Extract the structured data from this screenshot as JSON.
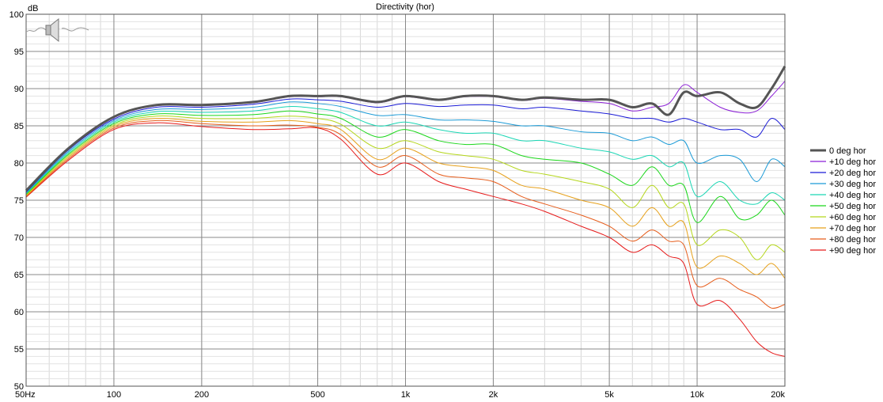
{
  "chart_data": {
    "type": "line",
    "title": "Directivity (hor)",
    "ylabel": "dB",
    "xscale": "log",
    "xlim": [
      50,
      20000
    ],
    "ylim": [
      50,
      100
    ],
    "x_ticks": [
      {
        "value": 50,
        "label": "50Hz"
      },
      {
        "value": 100,
        "label": "100"
      },
      {
        "value": 200,
        "label": "200"
      },
      {
        "value": 500,
        "label": "500"
      },
      {
        "value": 1000,
        "label": "1k"
      },
      {
        "value": 2000,
        "label": "2k"
      },
      {
        "value": 5000,
        "label": "5k"
      },
      {
        "value": 10000,
        "label": "10k"
      },
      {
        "value": 20000,
        "label": "20k"
      }
    ],
    "y_ticks": [
      {
        "value": 100,
        "label": "100"
      },
      {
        "value": 95,
        "label": "95"
      },
      {
        "value": 90,
        "label": "90"
      },
      {
        "value": 85,
        "label": "85"
      },
      {
        "value": 80,
        "label": "80"
      },
      {
        "value": 75,
        "label": "75"
      },
      {
        "value": 70,
        "label": "70"
      },
      {
        "value": 65,
        "label": "65"
      },
      {
        "value": 60,
        "label": "60"
      },
      {
        "value": 55,
        "label": "55"
      },
      {
        "value": 50,
        "label": "50"
      }
    ],
    "grid": true,
    "legend_position": "right",
    "x": [
      50,
      70,
      100,
      140,
      200,
      300,
      400,
      500,
      600,
      800,
      1000,
      1300,
      1600,
      2000,
      2500,
      3000,
      4000,
      5000,
      6000,
      7000,
      8000,
      9000,
      10000,
      12000,
      14000,
      16000,
      18000,
      20000
    ],
    "series": [
      {
        "name": "0 deg hor",
        "color": "#555555",
        "width": 3,
        "values": [
          76.3,
          82.0,
          86.2,
          87.8,
          87.8,
          88.2,
          89.0,
          89.0,
          89.0,
          88.2,
          89.0,
          88.5,
          89.0,
          89.0,
          88.5,
          88.8,
          88.5,
          88.5,
          87.5,
          88.0,
          86.5,
          89.5,
          89.0,
          89.5,
          88.0,
          87.5,
          90.0,
          93.0
        ]
      },
      {
        "name": "+10 deg hor",
        "color": "#8b1fd6",
        "width": 1,
        "values": [
          76.2,
          81.9,
          86.1,
          87.7,
          87.7,
          88.1,
          88.9,
          88.9,
          88.9,
          88.1,
          88.9,
          88.4,
          88.9,
          88.9,
          88.4,
          88.7,
          88.3,
          88.0,
          87.0,
          87.5,
          88.0,
          90.5,
          89.5,
          87.5,
          86.8,
          87.0,
          89.0,
          91.0
        ]
      },
      {
        "name": "+20 deg hor",
        "color": "#1a1ad6",
        "width": 1,
        "values": [
          76.1,
          81.8,
          85.9,
          87.5,
          87.5,
          87.9,
          88.6,
          88.5,
          88.3,
          87.5,
          88.0,
          87.6,
          87.8,
          87.8,
          87.3,
          87.5,
          87.0,
          86.6,
          86.0,
          86.0,
          85.5,
          86.0,
          85.5,
          84.5,
          84.5,
          83.5,
          86.0,
          84.5
        ]
      },
      {
        "name": "+30 deg hor",
        "color": "#1a9ad6",
        "width": 1,
        "values": [
          76.0,
          81.6,
          85.7,
          87.2,
          87.2,
          87.5,
          88.2,
          88.0,
          87.6,
          86.4,
          86.5,
          85.8,
          85.8,
          85.6,
          85.0,
          85.0,
          84.2,
          84.0,
          83.0,
          83.5,
          82.5,
          83.0,
          80.0,
          81.0,
          80.5,
          77.5,
          80.5,
          79.5
        ]
      },
      {
        "name": "+40 deg hor",
        "color": "#1ad6b4",
        "width": 1,
        "values": [
          75.9,
          81.4,
          85.5,
          86.9,
          86.8,
          87.0,
          87.6,
          87.3,
          86.8,
          85.0,
          85.5,
          84.5,
          84.0,
          84.0,
          83.0,
          83.0,
          82.0,
          81.5,
          80.5,
          81.0,
          79.5,
          80.0,
          75.5,
          77.5,
          75.0,
          74.5,
          76.0,
          75.0
        ]
      },
      {
        "name": "+50 deg hor",
        "color": "#1ad61a",
        "width": 1,
        "values": [
          75.8,
          81.2,
          85.3,
          86.6,
          86.4,
          86.5,
          87.0,
          86.6,
          86.0,
          83.5,
          84.5,
          83.0,
          82.5,
          82.5,
          81.0,
          80.5,
          80.0,
          78.5,
          77.0,
          79.5,
          77.0,
          77.0,
          72.0,
          75.5,
          72.5,
          73.0,
          75.0,
          73.0
        ]
      },
      {
        "name": "+60 deg hor",
        "color": "#b4d61a",
        "width": 1,
        "values": [
          75.7,
          81.0,
          85.1,
          86.3,
          86.0,
          86.0,
          86.3,
          86.0,
          85.2,
          82.0,
          83.0,
          81.5,
          81.0,
          80.5,
          79.0,
          78.5,
          77.5,
          76.5,
          74.0,
          77.0,
          74.0,
          74.5,
          69.0,
          71.0,
          70.0,
          67.0,
          69.0,
          68.0
        ]
      },
      {
        "name": "+70 deg hor",
        "color": "#e6a01a",
        "width": 1,
        "values": [
          75.6,
          80.8,
          84.9,
          86.0,
          85.6,
          85.5,
          85.7,
          85.3,
          84.5,
          80.5,
          82.0,
          80.0,
          79.5,
          79.0,
          77.0,
          76.5,
          75.0,
          74.0,
          71.5,
          74.0,
          71.5,
          72.0,
          66.0,
          67.5,
          66.5,
          65.0,
          66.5,
          64.5
        ]
      },
      {
        "name": "+80 deg hor",
        "color": "#e65c1a",
        "width": 1,
        "values": [
          75.5,
          80.6,
          84.7,
          85.7,
          85.3,
          85.0,
          85.1,
          84.8,
          83.8,
          79.5,
          81.0,
          78.5,
          78.0,
          77.5,
          75.5,
          74.5,
          73.0,
          71.5,
          69.5,
          71.0,
          69.5,
          69.0,
          63.5,
          64.5,
          63.0,
          62.0,
          60.5,
          61.0
        ]
      },
      {
        "name": "+90 deg hor",
        "color": "#e61a1a",
        "width": 1,
        "values": [
          75.4,
          80.4,
          84.5,
          85.4,
          84.9,
          84.5,
          84.6,
          84.7,
          83.2,
          78.5,
          80.0,
          77.5,
          76.5,
          75.5,
          74.5,
          73.5,
          71.5,
          70.0,
          68.0,
          69.0,
          67.5,
          66.5,
          61.0,
          61.5,
          59.0,
          56.0,
          54.5,
          54.0
        ]
      }
    ]
  },
  "icon": {
    "name": "speaker-icon"
  }
}
